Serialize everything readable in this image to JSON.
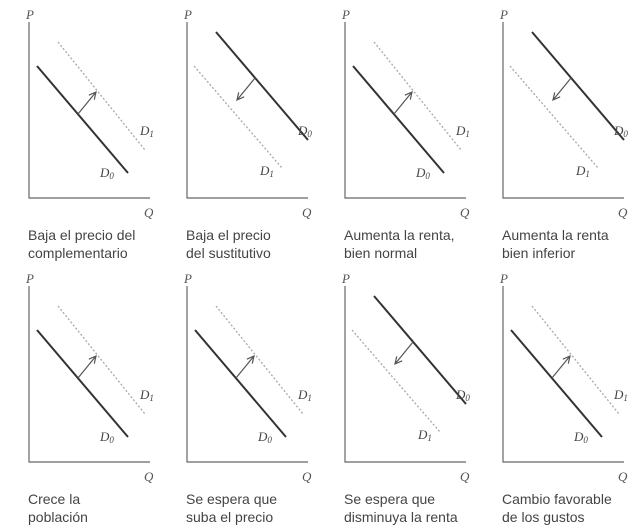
{
  "axis": {
    "price": "P",
    "quantity": "Q"
  },
  "panels": [
    {
      "caption": [
        "Baja el precio del",
        "complementario"
      ],
      "shift": "right",
      "label_solid": "D",
      "sub_solid": "0",
      "label_dashed": "D",
      "sub_dashed": "1"
    },
    {
      "caption": [
        "Baja el precio",
        "del sustitutivo"
      ],
      "shift": "left",
      "label_solid": "D",
      "sub_solid": "0",
      "label_dashed": "D",
      "sub_dashed": "1"
    },
    {
      "caption": [
        "Aumenta la renta,",
        "bien normal"
      ],
      "shift": "right",
      "label_solid": "D",
      "sub_solid": "0",
      "label_dashed": "D",
      "sub_dashed": "1"
    },
    {
      "caption": [
        "Aumenta la renta",
        "bien inferior"
      ],
      "shift": "left",
      "label_solid": "D",
      "sub_solid": "0",
      "label_dashed": "D",
      "sub_dashed": "1"
    },
    {
      "caption": [
        "Crece la",
        "población"
      ],
      "shift": "right",
      "label_solid": "D",
      "sub_solid": "0",
      "label_dashed": "D",
      "sub_dashed": "1"
    },
    {
      "caption": [
        "Se espera que",
        "suba el precio"
      ],
      "shift": "right",
      "label_solid": "D",
      "sub_solid": "0",
      "label_dashed": "D",
      "sub_dashed": "1"
    },
    {
      "caption": [
        "Se espera que",
        "disminuya la renta"
      ],
      "shift": "left",
      "label_solid": "D",
      "sub_solid": "0",
      "label_dashed": "D",
      "sub_dashed": "1"
    },
    {
      "caption": [
        "Cambio favorable",
        "de los gustos"
      ],
      "shift": "right",
      "label_solid": "D",
      "sub_solid": "0",
      "label_dashed": "D",
      "sub_dashed": "1"
    }
  ],
  "colors": {
    "axis": "#666666",
    "solid_curve": "#333333",
    "dashed_curve": "#a8a8a8",
    "arrow": "#555555"
  }
}
